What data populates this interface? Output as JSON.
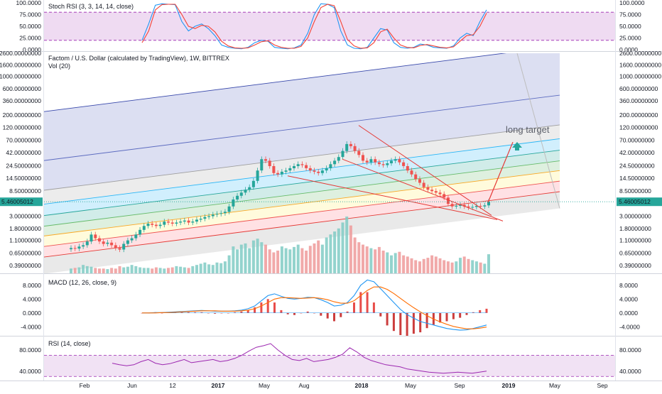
{
  "chart_data": [
    {
      "type": "line",
      "title": "Stoch RSI (3, 3, 14, 14, close)",
      "series": [
        {
          "name": "%K",
          "color": "#2196f3",
          "values": [
            20,
            55,
            95,
            98,
            97,
            96,
            60,
            40,
            50,
            55,
            45,
            30,
            10,
            5,
            3,
            2,
            5,
            15,
            20,
            18,
            5,
            3,
            2,
            4,
            10,
            35,
            75,
            98,
            97,
            90,
            40,
            10,
            3,
            2,
            5,
            25,
            45,
            42,
            15,
            5,
            3,
            5,
            12,
            10,
            5,
            4,
            3,
            8,
            25,
            35,
            30,
            60,
            85
          ]
        },
        {
          "name": "%D",
          "color": "#f44336",
          "values": [
            15,
            40,
            85,
            96,
            97,
            97,
            75,
            50,
            45,
            52,
            50,
            38,
            18,
            8,
            4,
            3,
            4,
            10,
            17,
            19,
            10,
            5,
            3,
            3,
            7,
            25,
            60,
            90,
            97,
            94,
            60,
            22,
            8,
            3,
            4,
            15,
            38,
            44,
            25,
            10,
            5,
            4,
            9,
            11,
            8,
            5,
            4,
            6,
            18,
            30,
            32,
            50,
            78
          ]
        }
      ],
      "ylim": [
        0,
        100
      ],
      "yticks": [
        "100.0000",
        "75.0000",
        "50.0000",
        "25.0000",
        "0.0000"
      ],
      "bands": [
        20,
        80
      ]
    },
    {
      "type": "candlestick",
      "title": "Factom / U.S. Dollar (calculated by TradingView), 1W, BITTREX",
      "subtitle": "Vol (20)",
      "scale": "log",
      "last_price": "5.46005012",
      "yticks": [
        "2600.00000000",
        "1600.00000000",
        "1000.00000000",
        "600.00000000",
        "360.00000000",
        "200.00000000",
        "120.00000000",
        "70.00000000",
        "42.00000000",
        "24.50000000",
        "14.50000000",
        "8.50000000",
        "5.46005012",
        "3.00000000",
        "1.80000000",
        "1.10000000",
        "0.65000000",
        "0.39000000"
      ],
      "close": [
        0.8,
        0.78,
        0.85,
        0.9,
        1.05,
        1.4,
        1.2,
        1.05,
        0.95,
        1.0,
        0.9,
        0.8,
        0.75,
        0.95,
        1.1,
        1.2,
        1.4,
        1.7,
        2.0,
        2.2,
        2.1,
        2.0,
        2.1,
        2.4,
        2.3,
        2.2,
        2.3,
        2.4,
        2.5,
        2.3,
        2.4,
        2.6,
        2.7,
        2.9,
        3.0,
        3.2,
        3.3,
        3.4,
        3.6,
        4.5,
        6.0,
        7.0,
        8.0,
        9.0,
        10.0,
        13.0,
        20.0,
        32.0,
        30.0,
        24.0,
        18.0,
        17.0,
        19.0,
        20.0,
        22.0,
        24.0,
        26.0,
        25.0,
        22.0,
        20.0,
        19.0,
        18.0,
        20.0,
        22.0,
        26.0,
        30.0,
        35.0,
        45.0,
        60.0,
        55.0,
        45.0,
        38.0,
        30.0,
        28.0,
        32.0,
        28.0,
        26.0,
        25.0,
        27.0,
        30.0,
        32.0,
        28.0,
        24.0,
        20.0,
        17.0,
        14.0,
        12.0,
        10.0,
        9.0,
        8.5,
        8.0,
        7.5,
        6.5,
        5.0,
        4.5,
        4.6,
        4.8,
        4.5,
        4.3,
        4.4,
        4.6,
        4.5,
        4.7,
        5.46
      ],
      "volume": [
        8,
        9,
        10,
        14,
        12,
        11,
        9,
        8,
        8,
        7,
        9,
        8,
        12,
        10,
        11,
        14,
        12,
        10,
        9,
        9,
        8,
        10,
        9,
        8,
        9,
        10,
        12,
        11,
        10,
        9,
        12,
        14,
        16,
        18,
        15,
        14,
        18,
        17,
        20,
        30,
        45,
        40,
        48,
        50,
        42,
        55,
        58,
        52,
        48,
        40,
        35,
        38,
        45,
        42,
        40,
        44,
        48,
        42,
        38,
        46,
        50,
        55,
        48,
        60,
        65,
        70,
        75,
        85,
        95,
        80,
        60,
        52,
        48,
        45,
        42,
        40,
        44,
        38,
        35,
        30,
        34,
        36,
        30,
        28,
        25,
        22,
        20,
        24,
        26,
        30,
        28,
        25,
        22,
        20,
        18,
        20,
        26,
        28,
        24,
        22,
        20,
        18,
        16,
        32
      ],
      "annotations": [
        {
          "text": "long target",
          "color": "#5d606b"
        }
      ],
      "fan_levels": [
        "0.618",
        "0.5",
        "0.382",
        "0.236",
        "0",
        "1",
        "1.618"
      ]
    },
    {
      "type": "line",
      "title": "MACD (12, 26, close, 9)",
      "yticks": [
        "8.0000",
        "4.0000",
        "0.0000",
        "-4.0000"
      ],
      "series": [
        {
          "name": "MACD",
          "color": "#2196f3",
          "values": [
            0,
            0,
            0.1,
            0.1,
            0.2,
            0.3,
            0.4,
            0.5,
            0.6,
            0.7,
            0.6,
            0.5,
            0.5,
            0.5,
            0.6,
            0.8,
            1.2,
            2.0,
            3.5,
            5.0,
            5.5,
            4.8,
            4.2,
            4.0,
            4.2,
            4.5,
            4.4,
            3.8,
            3.0,
            2.0,
            2.2,
            3.0,
            5.0,
            8.0,
            9.5,
            9.0,
            7.0,
            5.0,
            3.0,
            1.0,
            -0.5,
            -1.5,
            -2.5,
            -3.0,
            -3.5,
            -4.0,
            -4.5,
            -4.8,
            -5.0,
            -4.9,
            -4.5,
            -4.0,
            -3.5
          ]
        },
        {
          "name": "Signal",
          "color": "#ff6d00",
          "values": [
            0,
            0,
            0,
            0.1,
            0.1,
            0.2,
            0.3,
            0.4,
            0.5,
            0.6,
            0.6,
            0.6,
            0.5,
            0.5,
            0.5,
            0.6,
            0.8,
            1.2,
            2.0,
            3.0,
            4.0,
            4.4,
            4.4,
            4.3,
            4.2,
            4.3,
            4.4,
            4.2,
            3.8,
            3.2,
            2.8,
            2.8,
            3.5,
            5.0,
            6.5,
            7.5,
            7.5,
            6.8,
            5.6,
            4.2,
            2.8,
            1.5,
            0.3,
            -0.8,
            -1.8,
            -2.6,
            -3.3,
            -3.9,
            -4.3,
            -4.6,
            -4.6,
            -4.4,
            -4.1
          ]
        }
      ]
    },
    {
      "type": "line",
      "title": "RSI (14, close)",
      "yticks": [
        "80.0000",
        "40.0000"
      ],
      "ylim": [
        25,
        100
      ],
      "bands": [
        30,
        70
      ],
      "series": [
        {
          "name": "RSI",
          "color": "#9c27b0",
          "values": [
            55,
            52,
            50,
            52,
            58,
            62,
            55,
            52,
            54,
            58,
            62,
            56,
            58,
            60,
            62,
            58,
            60,
            64,
            70,
            78,
            85,
            88,
            92,
            80,
            70,
            62,
            60,
            64,
            58,
            60,
            62,
            66,
            72,
            84,
            76,
            66,
            60,
            56,
            52,
            50,
            48,
            44,
            42,
            40,
            38,
            37,
            36,
            37,
            38,
            37,
            36,
            38,
            40
          ]
        }
      ]
    }
  ],
  "x_axis": {
    "ticks": [
      "Feb",
      "Jun",
      "12",
      "2017",
      "May",
      "Aug",
      "2018",
      "May",
      "Sep",
      "2019",
      "May",
      "Sep"
    ]
  },
  "colors": {
    "up": "#26a69a",
    "down": "#ef5350",
    "price_tag": "#26a69a",
    "accent_line": "#e53935"
  }
}
